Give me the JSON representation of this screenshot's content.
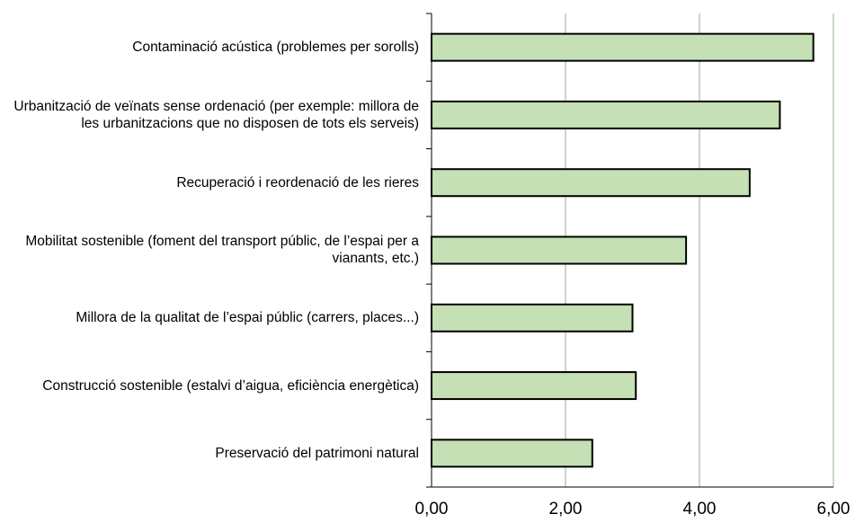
{
  "chart_data": {
    "type": "bar",
    "orientation": "horizontal",
    "categories": [
      "Contaminació acústica (problemes per sorolls)",
      "Urbanització de veïnats sense ordenació (per exemple: millora de les urbanitzacions que no disposen de tots els serveis)",
      "Recuperació i reordenació de les rieres",
      "Mobilitat sostenible (foment del transport públic, de l’espai per a vianants, etc.)",
      "Millora de la qualitat de l’espai públic (carrers, places...)",
      "Construcció sostenible (estalvi d’aigua, eficiència energètica)",
      "Preservació del patrimoni natural"
    ],
    "values": [
      5.7,
      5.2,
      4.75,
      3.8,
      3.0,
      3.05,
      2.4
    ],
    "color": "#c5e0b4",
    "xlim": [
      0,
      6
    ],
    "xticks": [
      {
        "value": 0,
        "label": "0,00"
      },
      {
        "value": 2,
        "label": "2,00"
      },
      {
        "value": 4,
        "label": "4,00"
      },
      {
        "value": 6,
        "label": "6,00"
      }
    ],
    "grid": true
  }
}
